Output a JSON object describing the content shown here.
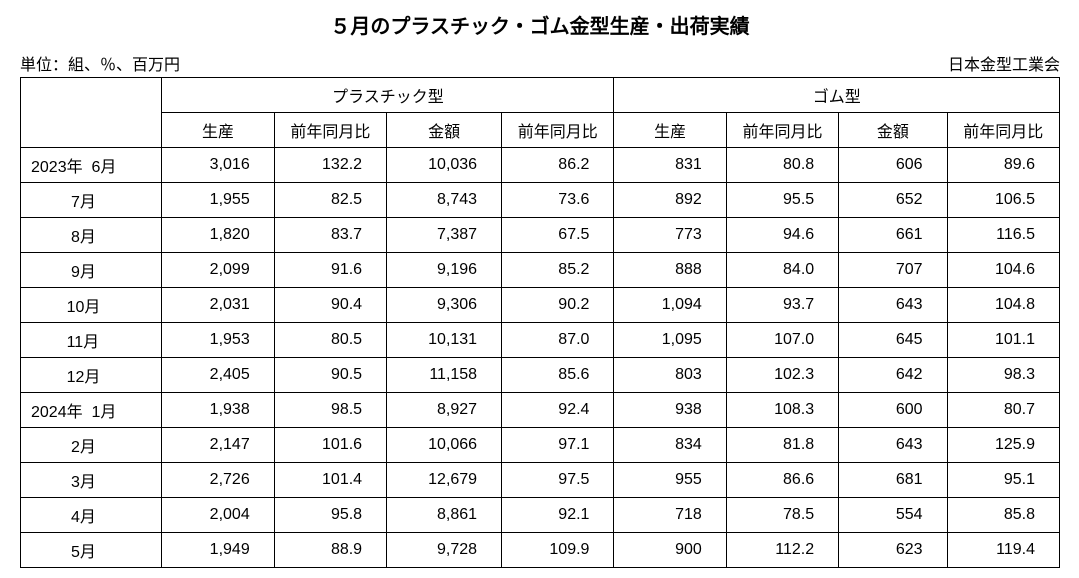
{
  "title": "５月のプラスチック・ゴム金型生産・出荷実績",
  "unit_label": "単位：組、％、百万円",
  "source_label": "日本金型工業会",
  "group_headers": [
    "プラスチック型",
    "ゴム型"
  ],
  "sub_headers": [
    "生産",
    "前年同月比",
    "金額",
    "前年同月比",
    "生産",
    "前年同月比",
    "金額",
    "前年同月比"
  ],
  "rows": [
    {
      "period": "2023年  6月",
      "values": [
        "3,016",
        "132.2",
        "10,036",
        "86.2",
        "831",
        "80.8",
        "606",
        "89.6"
      ]
    },
    {
      "period": "         7月",
      "values": [
        "1,955",
        "82.5",
        "8,743",
        "73.6",
        "892",
        "95.5",
        "652",
        "106.5"
      ]
    },
    {
      "period": "         8月",
      "values": [
        "1,820",
        "83.7",
        "7,387",
        "67.5",
        "773",
        "94.6",
        "661",
        "116.5"
      ]
    },
    {
      "period": "         9月",
      "values": [
        "2,099",
        "91.6",
        "9,196",
        "85.2",
        "888",
        "84.0",
        "707",
        "104.6"
      ]
    },
    {
      "period": "        10月",
      "values": [
        "2,031",
        "90.4",
        "9,306",
        "90.2",
        "1,094",
        "93.7",
        "643",
        "104.8"
      ]
    },
    {
      "period": "        11月",
      "values": [
        "1,953",
        "80.5",
        "10,131",
        "87.0",
        "1,095",
        "107.0",
        "645",
        "101.1"
      ]
    },
    {
      "period": "        12月",
      "values": [
        "2,405",
        "90.5",
        "11,158",
        "85.6",
        "803",
        "102.3",
        "642",
        "98.3"
      ]
    },
    {
      "period": "2024年  1月",
      "values": [
        "1,938",
        "98.5",
        "8,927",
        "92.4",
        "938",
        "108.3",
        "600",
        "80.7"
      ]
    },
    {
      "period": "         2月",
      "values": [
        "2,147",
        "101.6",
        "10,066",
        "97.1",
        "834",
        "81.8",
        "643",
        "125.9"
      ]
    },
    {
      "period": "         3月",
      "values": [
        "2,726",
        "101.4",
        "12,679",
        "97.5",
        "955",
        "86.6",
        "681",
        "95.1"
      ]
    },
    {
      "period": "         4月",
      "values": [
        "2,004",
        "95.8",
        "8,861",
        "92.1",
        "718",
        "78.5",
        "554",
        "85.8"
      ]
    },
    {
      "period": "         5月",
      "values": [
        "1,949",
        "88.9",
        "9,728",
        "109.9",
        "900",
        "112.2",
        "623",
        "119.4"
      ]
    }
  ],
  "styles": {
    "font_family": "MS Gothic",
    "title_fontsize": 20,
    "body_fontsize": 16,
    "text_color": "#000000",
    "background_color": "#ffffff",
    "border_color": "#000000",
    "col_period_width": 140,
    "col_data_width": 112
  }
}
